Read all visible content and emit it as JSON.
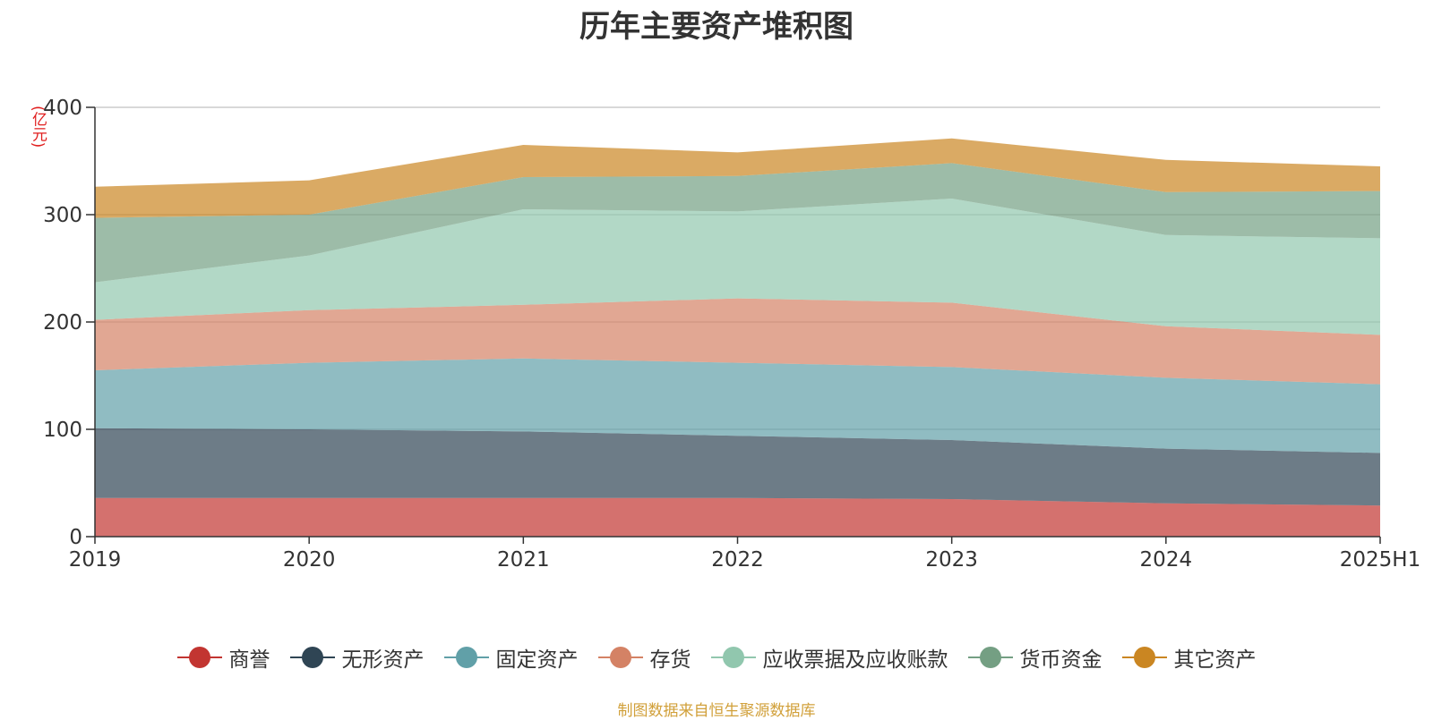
{
  "chart_data": {
    "type": "area",
    "stacked": true,
    "title": "历年主要资产堆积图",
    "unit_label": "(亿元)",
    "source_note": "制图数据来自恒生聚源数据库",
    "x": [
      "2019",
      "2020",
      "2021",
      "2022",
      "2023",
      "2024",
      "2025H1"
    ],
    "ylim": [
      0,
      400
    ],
    "yticks": [
      0,
      100,
      200,
      300,
      400
    ],
    "grid": true,
    "legend_position": "bottom",
    "series": [
      {
        "name": "商誉",
        "color": "#c23531",
        "values": [
          36,
          36,
          36,
          36,
          35,
          31,
          29
        ]
      },
      {
        "name": "无形资产",
        "color": "#2f4554",
        "values": [
          65,
          64,
          62,
          58,
          55,
          51,
          49
        ]
      },
      {
        "name": "固定资产",
        "color": "#61a0a8",
        "values": [
          54,
          62,
          68,
          68,
          68,
          66,
          64
        ]
      },
      {
        "name": "存货",
        "color": "#d48265",
        "values": [
          47,
          49,
          50,
          60,
          60,
          48,
          46
        ]
      },
      {
        "name": "应收票据及应收账款",
        "color": "#91c7ae",
        "values": [
          35,
          51,
          89,
          81,
          97,
          85,
          90
        ]
      },
      {
        "name": "货币资金",
        "color": "#749f83",
        "values": [
          60,
          38,
          30,
          33,
          33,
          40,
          44
        ]
      },
      {
        "name": "其它资产",
        "color": "#ca8622",
        "values": [
          29,
          32,
          30,
          22,
          23,
          30,
          23
        ]
      }
    ]
  }
}
